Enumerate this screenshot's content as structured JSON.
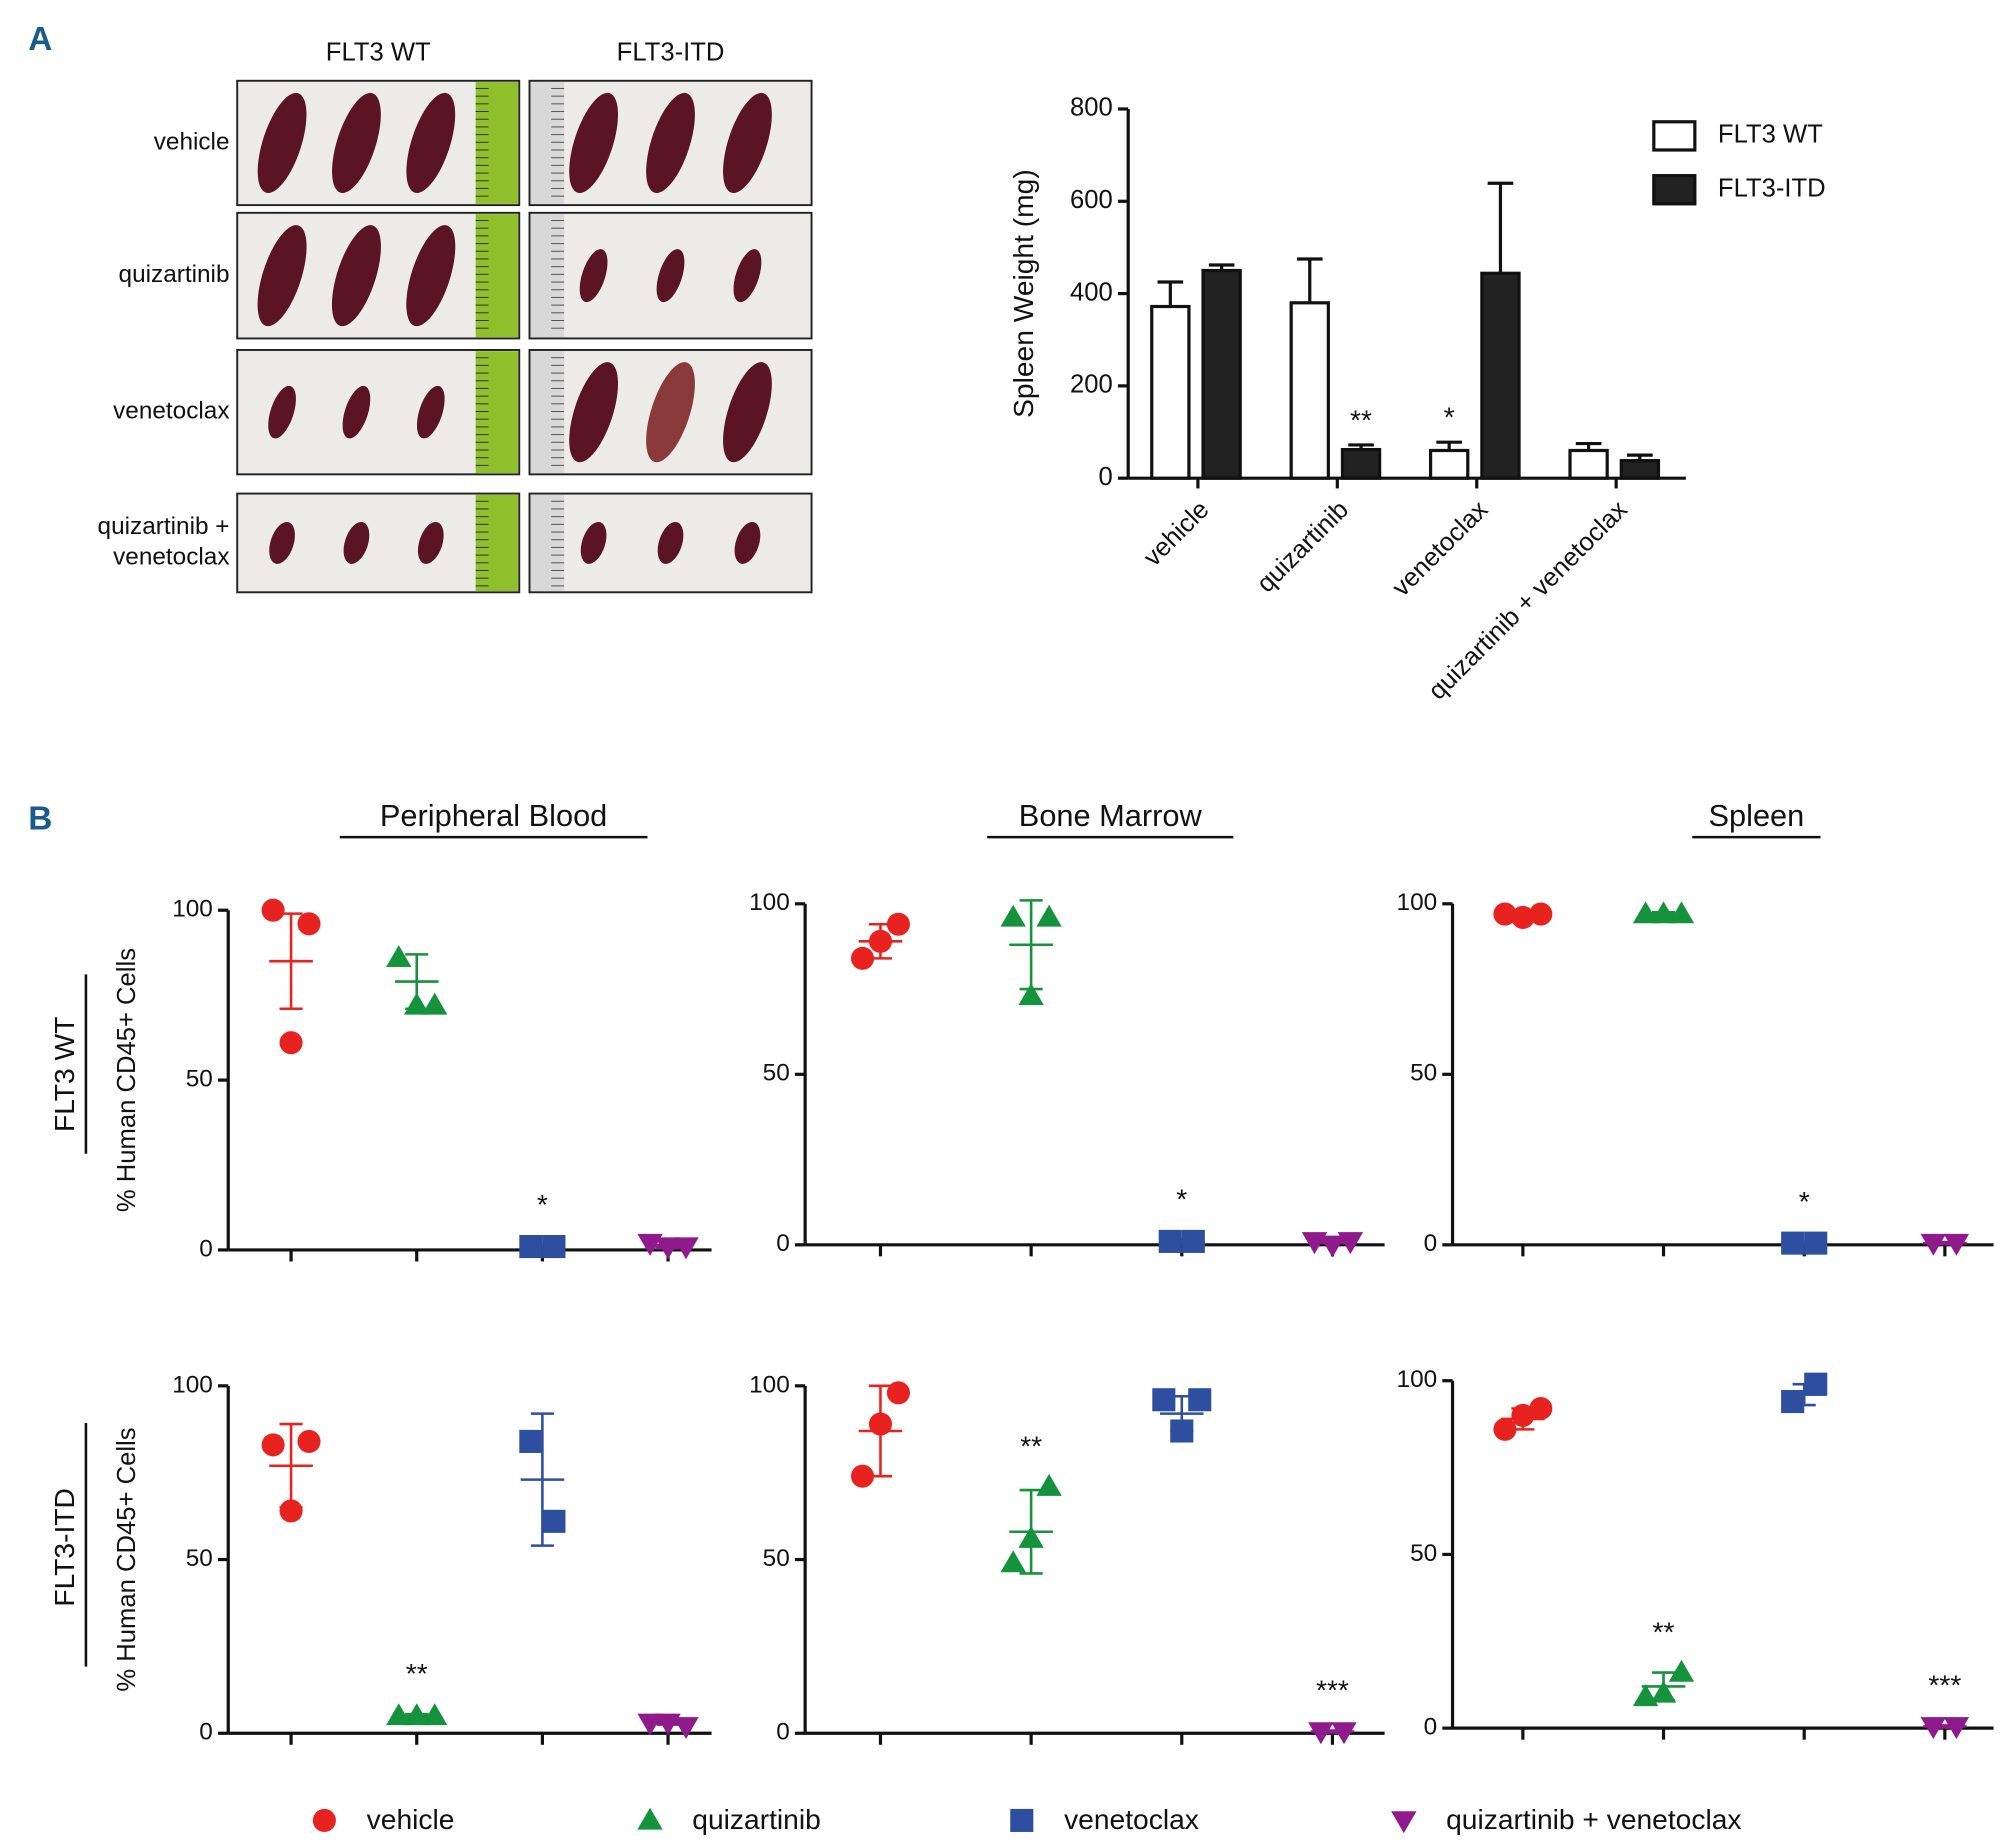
{
  "panel_labels": [
    "A",
    "B"
  ],
  "photos": {
    "columns": [
      "FLT3 WT",
      "FLT3-ITD"
    ],
    "rows": [
      [
        "vehicle"
      ],
      [
        "quizartinib"
      ],
      [
        "venetoclax"
      ],
      [
        "quizartinib +",
        "venetoclax"
      ]
    ]
  },
  "groups": [
    {
      "name": "vehicle",
      "color": "#e8231f",
      "marker": "circle"
    },
    {
      "name": "quizartinib",
      "color": "#14923c",
      "marker": "triangle"
    },
    {
      "name": "venetoclax",
      "color": "#2e4fa0",
      "marker": "square"
    },
    {
      "name": "quizartinib + venetoclax",
      "color": "#8e1a8c",
      "marker": "triangle-down"
    }
  ],
  "columns": [
    "Peripheral Blood",
    "Bone Marrow",
    "Spleen"
  ],
  "rows": [
    "FLT3 WT",
    "FLT3-ITD"
  ],
  "chart_data": [
    {
      "type": "bar",
      "ylabel": "Spleen Weight (mg)",
      "categories": [
        "vehicle",
        "quizartinib",
        "venetoclax",
        "quizartinib + venetoclax"
      ],
      "ylim": [
        0,
        800
      ],
      "yticks": [
        0,
        200,
        400,
        600,
        800
      ],
      "legend": "top-right",
      "series": [
        {
          "name": "FLT3 WT",
          "color": "#ffffff",
          "values": [
            372,
            380,
            60,
            60
          ],
          "errors": [
            53,
            95,
            18,
            15
          ]
        },
        {
          "name": "FLT3-ITD",
          "color": "#222222",
          "values": [
            450,
            62,
            444,
            38
          ],
          "errors": [
            12,
            10,
            195,
            12
          ]
        }
      ],
      "annotations": [
        {
          "series": 1,
          "category": 1,
          "text": "**"
        },
        {
          "series": 0,
          "category": 2,
          "text": "*"
        }
      ]
    },
    {
      "type": "dot",
      "ylabel": "% Human CD45+ Cells",
      "ylim": [
        0,
        100
      ],
      "yticks": [
        0,
        50,
        100
      ],
      "series": [
        {
          "values": [
            100,
            96,
            61
          ],
          "mean": 85,
          "sd": 14
        },
        {
          "values": [
            86,
            72,
            72
          ],
          "mean": 79,
          "sd": 8
        },
        {
          "values": [
            1,
            1
          ],
          "mean": 1,
          "sd": 0.5
        },
        {
          "values": [
            2,
            1,
            1
          ],
          "mean": 1,
          "sd": 0.5
        }
      ],
      "annotations": [
        {
          "series": 2,
          "text": "*"
        }
      ]
    },
    {
      "type": "dot",
      "ylim": [
        0,
        100
      ],
      "yticks": [
        0,
        50,
        100
      ],
      "series": [
        {
          "values": [
            84,
            94,
            89
          ],
          "mean": 89,
          "sd": 5
        },
        {
          "values": [
            96,
            96,
            73
          ],
          "mean": 88,
          "sd": 13
        },
        {
          "values": [
            1,
            1
          ],
          "mean": 1,
          "sd": 0.5
        },
        {
          "values": [
            1,
            1,
            0
          ],
          "mean": 1,
          "sd": 0.5
        }
      ],
      "annotations": [
        {
          "series": 2,
          "text": "*"
        }
      ]
    },
    {
      "type": "dot",
      "ylim": [
        0,
        100
      ],
      "yticks": [
        0,
        50,
        100
      ],
      "series": [
        {
          "values": [
            97,
            97,
            96
          ],
          "mean": 97,
          "sd": 0.5
        },
        {
          "values": [
            97,
            97,
            97
          ],
          "mean": 97,
          "sd": 0.5
        },
        {
          "values": [
            0.5,
            0.5
          ],
          "mean": 0.5,
          "sd": 0.3
        },
        {
          "values": [
            0.5,
            0.5
          ],
          "mean": 0.5,
          "sd": 0.3
        }
      ],
      "annotations": [
        {
          "series": 2,
          "text": "*"
        }
      ]
    },
    {
      "type": "dot",
      "ylabel": "% Human CD45+ Cells",
      "ylim": [
        0,
        100
      ],
      "yticks": [
        0,
        50,
        100
      ],
      "series": [
        {
          "values": [
            83,
            84,
            64
          ],
          "mean": 77,
          "sd": 12
        },
        {
          "values": [
            5,
            5,
            5
          ],
          "mean": 5,
          "sd": 0.5
        },
        {
          "values": [
            84,
            61
          ],
          "mean": 73,
          "sd": 19
        },
        {
          "values": [
            3,
            2,
            3
          ],
          "mean": 3,
          "sd": 0.5
        }
      ],
      "annotations": [
        {
          "series": 1,
          "text": "**"
        }
      ]
    },
    {
      "type": "dot",
      "ylim": [
        0,
        100
      ],
      "yticks": [
        0,
        50,
        100
      ],
      "series": [
        {
          "values": [
            74,
            98,
            89
          ],
          "mean": 87,
          "sd": 13
        },
        {
          "values": [
            49,
            71,
            56
          ],
          "mean": 58,
          "sd": 12
        },
        {
          "values": [
            96,
            96,
            87
          ],
          "mean": 92,
          "sd": 5
        },
        {
          "values": [
            0.5,
            0.5
          ],
          "mean": 0.5,
          "sd": 0.3
        }
      ],
      "annotations": [
        {
          "series": 1,
          "text": "**"
        },
        {
          "series": 3,
          "text": "***"
        }
      ]
    },
    {
      "type": "dot",
      "ylim": [
        0,
        100
      ],
      "yticks": [
        0,
        50,
        100
      ],
      "series": [
        {
          "values": [
            86,
            92,
            90
          ],
          "mean": 89,
          "sd": 3
        },
        {
          "values": [
            9,
            16,
            10
          ],
          "mean": 12,
          "sd": 4
        },
        {
          "values": [
            94,
            99
          ],
          "mean": 96,
          "sd": 3
        },
        {
          "values": [
            0.5,
            0.5
          ],
          "mean": 0.5,
          "sd": 0.3
        }
      ],
      "annotations": [
        {
          "series": 1,
          "text": "**"
        },
        {
          "series": 3,
          "text": "***"
        }
      ]
    }
  ]
}
